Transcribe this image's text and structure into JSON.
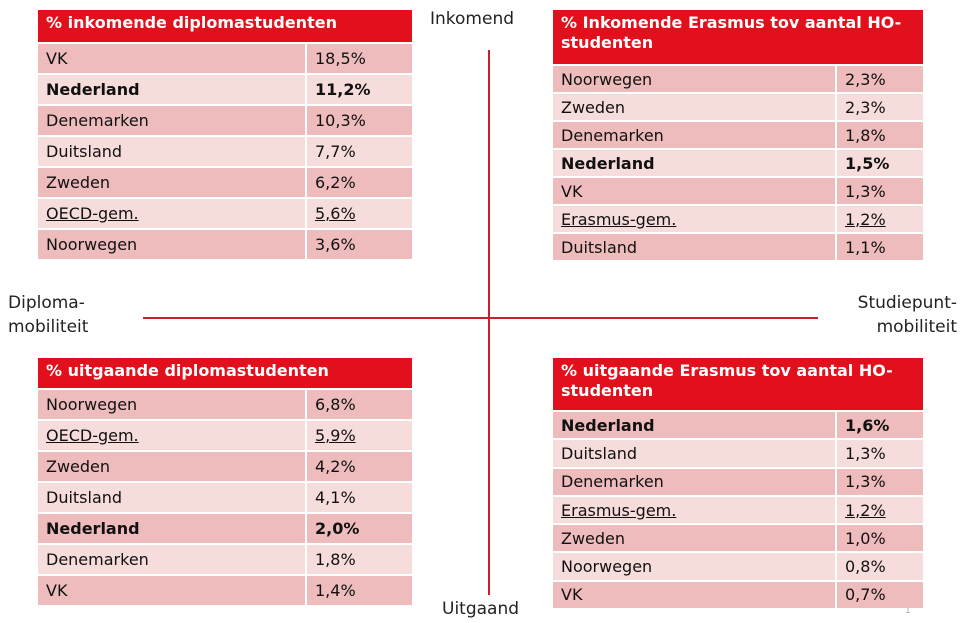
{
  "axis_labels": {
    "top": "Inkomend",
    "bottom": "Uitgaand",
    "left": [
      "Diploma-",
      "mobiliteit"
    ],
    "right": [
      "Studiepunt-",
      "mobiliteit"
    ]
  },
  "page_number": "1",
  "tables": [
    {
      "title": "% inkomende diplomastudenten",
      "bold_row": 1,
      "underline_row": 5,
      "rows": [
        [
          "VK",
          "18,5%"
        ],
        [
          "Nederland",
          "11,2%"
        ],
        [
          "Denemarken",
          "10,3%"
        ],
        [
          "Duitsland",
          "7,7%"
        ],
        [
          "Zweden",
          "6,2%"
        ],
        [
          "OECD-gem.",
          "5,6%"
        ],
        [
          "Noorwegen",
          "3,6%"
        ]
      ]
    },
    {
      "title": "% Inkomende Erasmus tov aantal HO-studenten",
      "bold_row": 3,
      "underline_row": 5,
      "rows": [
        [
          "Noorwegen",
          "2,3%"
        ],
        [
          "Zweden",
          "2,3%"
        ],
        [
          "Denemarken",
          "1,8%"
        ],
        [
          "Nederland",
          "1,5%"
        ],
        [
          "VK",
          "1,3%"
        ],
        [
          "Erasmus-gem.",
          "1,2%"
        ],
        [
          "Duitsland",
          "1,1%"
        ]
      ]
    },
    {
      "title": "% uitgaande diplomastudenten",
      "bold_row": 4,
      "underline_row": 1,
      "rows": [
        [
          "Noorwegen",
          "6,8%"
        ],
        [
          "OECD-gem.",
          "5,9%"
        ],
        [
          "Zweden",
          "4,2%"
        ],
        [
          "Duitsland",
          "4,1%"
        ],
        [
          "Nederland",
          "2,0%"
        ],
        [
          "Denemarken",
          "1,8%"
        ],
        [
          "VK",
          "1,4%"
        ]
      ]
    },
    {
      "title": "% uitgaande Erasmus tov aantal HO-studenten",
      "bold_row": 0,
      "underline_row": 3,
      "rows": [
        [
          "Nederland",
          "1,6%"
        ],
        [
          "Duitsland",
          "1,3%"
        ],
        [
          "Denemarken",
          "1,3%"
        ],
        [
          "Erasmus-gem.",
          "1,2%"
        ],
        [
          "Zweden",
          "1,0%"
        ],
        [
          "Noorwegen",
          "0,8%"
        ],
        [
          "VK",
          "0,7%"
        ]
      ]
    }
  ]
}
